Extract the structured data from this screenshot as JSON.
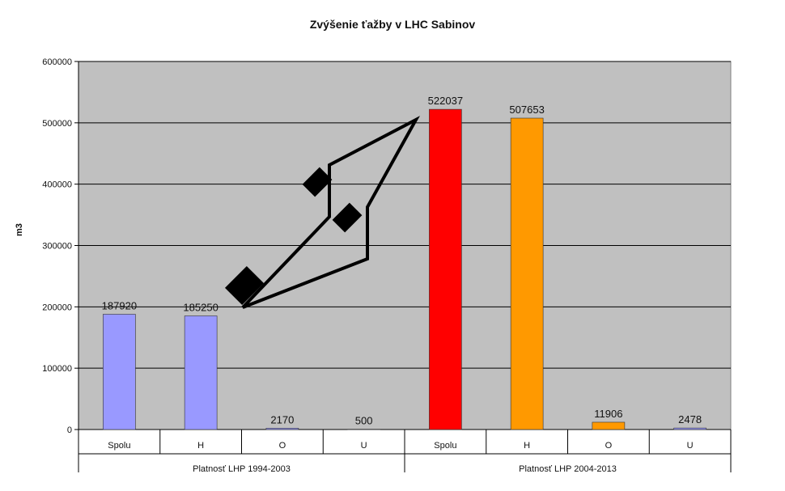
{
  "chart_data": {
    "type": "bar",
    "title": "Zvýšenie ťažby v LHC Sabinov",
    "ylabel": "m3",
    "xlabel": "",
    "ylim": [
      0,
      600000
    ],
    "yticks": [
      0,
      100000,
      200000,
      300000,
      400000,
      500000,
      600000
    ],
    "grid": true,
    "background_color": "#c0c0c0",
    "groups": [
      {
        "label": "Platnosť LHP 1994-2003",
        "categories": [
          "Spolu",
          "H",
          "O",
          "U"
        ],
        "values": [
          187920,
          185250,
          2170,
          500
        ],
        "colors": [
          "#9999ff",
          "#9999ff",
          "#9999ff",
          "#9999ff"
        ]
      },
      {
        "label": "Platnosť LHP 2004-2013",
        "categories": [
          "Spolu",
          "H",
          "O",
          "U"
        ],
        "values": [
          522037,
          507653,
          11906,
          2478
        ],
        "colors": [
          "#ff0000",
          "#ff9900",
          "#ff9900",
          "#9999ff"
        ]
      }
    ],
    "annotations": [
      {
        "type": "arrow",
        "description": "black outlined arrow pointing up-right toward the 2004-2013 bars"
      }
    ]
  }
}
